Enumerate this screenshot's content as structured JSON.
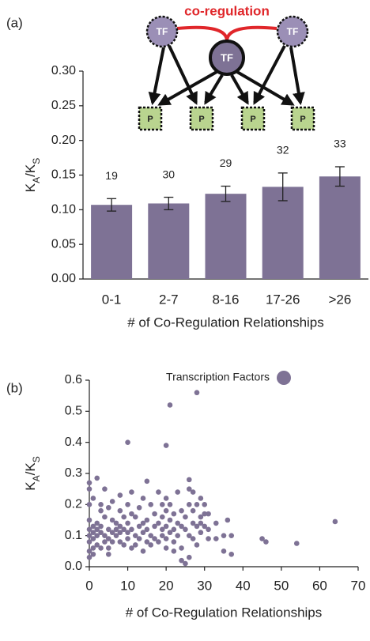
{
  "chart_data": [
    {
      "type": "bar",
      "panel": "(a)",
      "inset": {
        "label": "co-regulation",
        "tf": "TF",
        "p": "P"
      },
      "categories": [
        "0-1",
        "2-7",
        "8-16",
        "17-26",
        ">26"
      ],
      "values": [
        0.107,
        0.109,
        0.123,
        0.133,
        0.148
      ],
      "errors": [
        0.009,
        0.009,
        0.011,
        0.02,
        0.014
      ],
      "counts": [
        19,
        30,
        29,
        32,
        33
      ],
      "color": "#7e7295",
      "x_label": "# of Co-Regulation Relationships",
      "y_label": [
        "K",
        "A",
        "/K",
        "S"
      ],
      "ylim": [
        0,
        0.3
      ],
      "yticks": [
        {
          "value": 0,
          "label": "0.00"
        },
        {
          "value": 0.05,
          "label": "0.05"
        },
        {
          "value": 0.1,
          "label": "0.10"
        },
        {
          "value": 0.15,
          "label": "0.15"
        },
        {
          "value": 0.2,
          "label": "0.20"
        },
        {
          "value": 0.25,
          "label": "0.25"
        },
        {
          "value": 0.3,
          "label": "0.30"
        }
      ]
    },
    {
      "type": "scatter",
      "panel": "(b)",
      "x": [
        0,
        0,
        0,
        0,
        0,
        0,
        0,
        0,
        0,
        1,
        1,
        1,
        1,
        1,
        1,
        2,
        2,
        2,
        2,
        2,
        3,
        3,
        3,
        3,
        3,
        4,
        4,
        4,
        4,
        5,
        5,
        5,
        5,
        5,
        6,
        6,
        6,
        6,
        7,
        7,
        7,
        8,
        8,
        8,
        8,
        8,
        9,
        9,
        9,
        10,
        10,
        10,
        10,
        10,
        11,
        11,
        11,
        11,
        12,
        12,
        12,
        13,
        13,
        13,
        14,
        14,
        14,
        14,
        15,
        15,
        15,
        15,
        16,
        16,
        16,
        17,
        17,
        17,
        18,
        18,
        18,
        19,
        19,
        19,
        19,
        20,
        20,
        20,
        20,
        20,
        20,
        21,
        21,
        21,
        21,
        22,
        22,
        22,
        22,
        23,
        23,
        23,
        24,
        24,
        24,
        24,
        25,
        25,
        25,
        26,
        26,
        26,
        26,
        26,
        27,
        27,
        27,
        27,
        28,
        28,
        28,
        28,
        29,
        29,
        29,
        29,
        30,
        30,
        30,
        31,
        31,
        31,
        33,
        33,
        35,
        35,
        36,
        37,
        37,
        45,
        46,
        54,
        64
      ],
      "series": [
        {
          "name": "Transcription Factors",
          "color": "#7e7295",
          "values": [
            0.27,
            0.25,
            0.2,
            0.15,
            0.12,
            0.1,
            0.08,
            0.05,
            0.03,
            0.22,
            0.13,
            0.11,
            0.09,
            0.06,
            0.04,
            0.285,
            0.14,
            0.12,
            0.1,
            0.07,
            0.2,
            0.18,
            0.13,
            0.11,
            0.06,
            0.25,
            0.16,
            0.1,
            0.08,
            0.19,
            0.12,
            0.09,
            0.06,
            0.04,
            0.21,
            0.15,
            0.11,
            0.08,
            0.12,
            0.1,
            0.14,
            0.23,
            0.18,
            0.13,
            0.11,
            0.08,
            0.16,
            0.12,
            0.07,
            0.4,
            0.2,
            0.14,
            0.11,
            0.09,
            0.24,
            0.17,
            0.12,
            0.06,
            0.16,
            0.1,
            0.07,
            0.19,
            0.13,
            0.09,
            0.22,
            0.14,
            0.11,
            0.05,
            0.275,
            0.15,
            0.12,
            0.08,
            0.2,
            0.1,
            0.07,
            0.17,
            0.13,
            0.09,
            0.24,
            0.14,
            0.08,
            0.2,
            0.16,
            0.12,
            0.1,
            0.39,
            0.22,
            0.18,
            0.13,
            0.09,
            0.06,
            0.52,
            0.2,
            0.15,
            0.11,
            0.17,
            0.12,
            0.08,
            0.05,
            0.24,
            0.14,
            0.1,
            0.18,
            0.13,
            0.06,
            0.02,
            0.16,
            0.12,
            0.01,
            0.28,
            0.25,
            0.2,
            0.1,
            0.03,
            0.24,
            0.18,
            0.14,
            0.09,
            0.56,
            0.2,
            0.13,
            0.07,
            0.22,
            0.16,
            0.14,
            0.11,
            0.2,
            0.17,
            0.13,
            0.17,
            0.12,
            0.09,
            0.09,
            0.14,
            0.05,
            0.1,
            0.15,
            0.1,
            0.04,
            0.09,
            0.08,
            0.075,
            0.145
          ]
        }
      ],
      "x_label": "# of Co-Regulation Relationships",
      "y_label": [
        "K",
        "A",
        "/K",
        "S"
      ],
      "xlim": [
        0,
        70
      ],
      "xticks": [
        0,
        10,
        20,
        30,
        40,
        50,
        60,
        70
      ],
      "ylim": [
        0,
        0.6
      ],
      "yticks": [
        {
          "value": 0,
          "label": "0.0"
        },
        {
          "value": 0.1,
          "label": "0.1"
        },
        {
          "value": 0.2,
          "label": "0.2"
        },
        {
          "value": 0.3,
          "label": "0.3"
        },
        {
          "value": 0.4,
          "label": "0.4"
        },
        {
          "value": 0.5,
          "label": "0.5"
        },
        {
          "value": 0.6,
          "label": "0.6"
        }
      ],
      "legend": "top-right"
    }
  ]
}
